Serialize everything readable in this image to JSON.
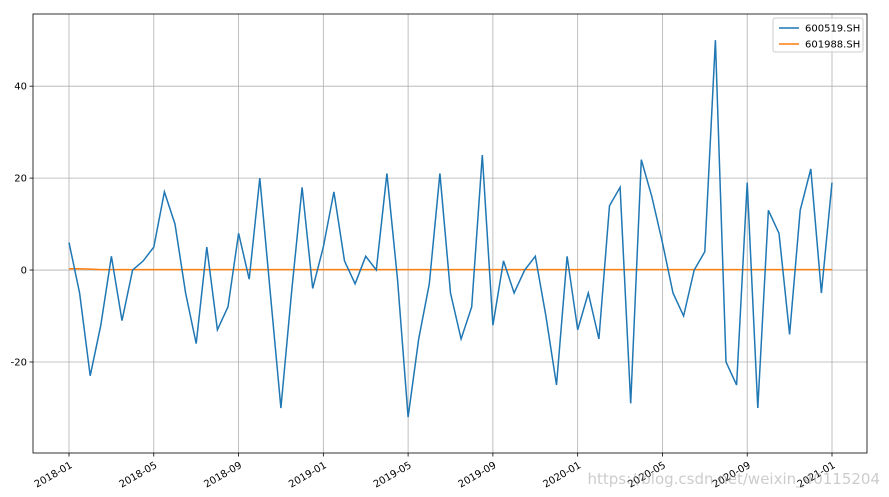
{
  "chart_data": {
    "type": "line",
    "x": [
      "2018-01",
      "2018-01",
      "2018-02",
      "2018-02",
      "2018-03",
      "2018-03",
      "2018-04",
      "2018-04",
      "2018-05",
      "2018-05",
      "2018-06",
      "2018-06",
      "2018-07",
      "2018-07",
      "2018-08",
      "2018-08",
      "2018-09",
      "2018-09",
      "2018-10",
      "2018-10",
      "2018-11",
      "2018-11",
      "2018-12",
      "2018-12",
      "2019-01",
      "2019-01",
      "2019-02",
      "2019-02",
      "2019-03",
      "2019-03",
      "2019-04",
      "2019-04",
      "2019-05",
      "2019-05",
      "2019-06",
      "2019-06",
      "2019-07",
      "2019-07",
      "2019-08",
      "2019-08",
      "2019-09",
      "2019-09",
      "2019-10",
      "2019-10",
      "2019-11",
      "2019-11",
      "2019-12",
      "2019-12",
      "2020-01",
      "2020-01",
      "2020-02",
      "2020-02",
      "2020-03",
      "2020-03",
      "2020-04",
      "2020-04",
      "2020-05",
      "2020-05",
      "2020-06",
      "2020-06",
      "2020-07",
      "2020-07",
      "2020-08",
      "2020-08",
      "2020-09",
      "2020-09",
      "2020-10",
      "2020-10",
      "2020-11",
      "2020-11",
      "2020-12",
      "2020-12",
      "2021-01"
    ],
    "series": [
      {
        "name": "600519.SH",
        "color": "#1f77b4",
        "values": [
          6,
          -5,
          -23,
          -12,
          3,
          -11,
          0,
          2,
          5,
          17,
          10,
          -5,
          -16,
          5,
          -13,
          -8,
          8,
          -2,
          20,
          -5,
          -30,
          -5,
          18,
          -4,
          5,
          17,
          2,
          -3,
          3,
          0,
          21,
          -2,
          -32,
          -15,
          -3,
          21,
          -5,
          -15,
          -8,
          25,
          -12,
          2,
          -5,
          0,
          3,
          -10,
          -25,
          3,
          -13,
          -5,
          -15,
          14,
          18,
          -29,
          24,
          16,
          6,
          -5,
          -10,
          0,
          4,
          50,
          -20,
          -25,
          19,
          -30,
          13,
          8,
          -14,
          13,
          22,
          -5,
          19
        ]
      },
      {
        "name": "601988.SH",
        "color": "#ff7f0e",
        "values": [
          0.3,
          0.3,
          0.2,
          0.1,
          0.1,
          0.1,
          0.1,
          0.1,
          0.1,
          0.1,
          0.1,
          0.1,
          0.1,
          0.1,
          0.1,
          0.1,
          0.1,
          0.1,
          0.1,
          0.1,
          0.1,
          0.1,
          0.1,
          0.1,
          0.1,
          0.1,
          0.1,
          0.1,
          0.1,
          0.1,
          0.1,
          0.1,
          0.1,
          0.1,
          0.1,
          0.1,
          0.1,
          0.1,
          0.1,
          0.1,
          0.1,
          0.1,
          0.1,
          0.1,
          0.1,
          0.1,
          0.1,
          0.1,
          0.1,
          0.1,
          0.1,
          0.1,
          0.1,
          0.1,
          0.1,
          0.1,
          0.1,
          0.1,
          0.1,
          0.1,
          0.1,
          0.1,
          0.1,
          0.1,
          0.1,
          0.1,
          0.1,
          0.1,
          0.1,
          0.1,
          0.1,
          0.1,
          0.1
        ]
      }
    ],
    "ylim": [
      -39.8,
      55.7
    ],
    "yticks": [
      -20,
      0,
      20,
      40
    ],
    "xticks": [
      "2018-01",
      "2018-05",
      "2018-09",
      "2019-01",
      "2019-05",
      "2019-09",
      "2020-01",
      "2020-05",
      "2020-09",
      "2021-01"
    ],
    "grid": true,
    "legend": "upper right",
    "watermark": "https://blog.csdn.net/weixin_40115204"
  }
}
